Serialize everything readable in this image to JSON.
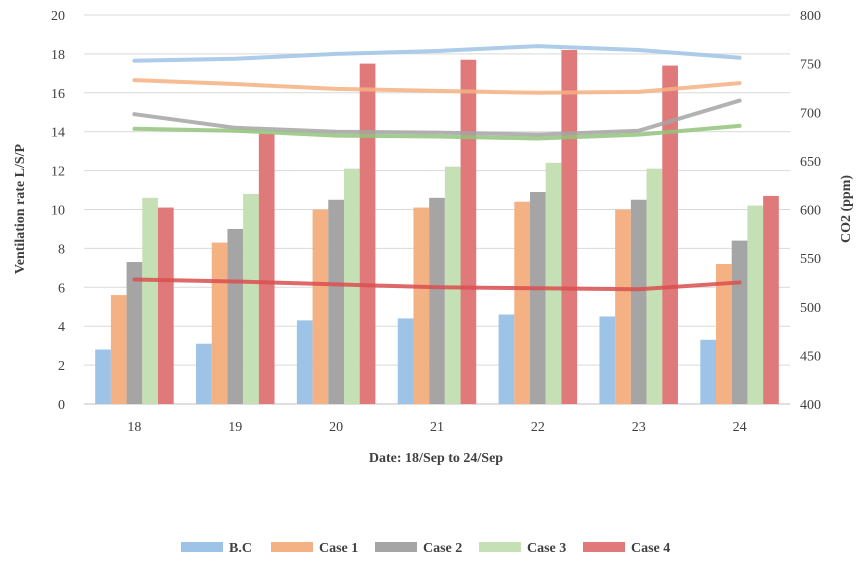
{
  "chart_data": {
    "type": "bar",
    "title": "",
    "xlabel": "Date: 18/Sep to 24/Sep",
    "ylabel": "Ventilation rate L/S/P",
    "y2label": "CO2 (ppm)",
    "categories": [
      "18",
      "19",
      "20",
      "21",
      "22",
      "23",
      "24"
    ],
    "ylim": [
      0,
      20
    ],
    "yticks": [
      "0",
      "2",
      "4",
      "6",
      "8",
      "10",
      "12",
      "14",
      "16",
      "18",
      "20"
    ],
    "y2lim": [
      400,
      800
    ],
    "y2ticks": [
      "400",
      "450",
      "500",
      "550",
      "600",
      "650",
      "700",
      "750",
      "800"
    ],
    "grid": true,
    "legend_position": "bottom",
    "series": [
      {
        "name": "B.C",
        "color": "#9dc3e6",
        "values": [
          2.8,
          3.1,
          4.3,
          4.4,
          4.6,
          4.5,
          3.3
        ]
      },
      {
        "name": "Case 1",
        "color": "#f4b183",
        "values": [
          5.6,
          8.3,
          10.0,
          10.1,
          10.4,
          10.0,
          7.2
        ]
      },
      {
        "name": "Case 2",
        "color": "#a5a5a5",
        "values": [
          7.3,
          9.0,
          10.5,
          10.6,
          10.9,
          10.5,
          8.4
        ]
      },
      {
        "name": "Case 3",
        "color": "#c5e0b4",
        "values": [
          10.6,
          10.8,
          12.1,
          12.2,
          12.4,
          12.1,
          10.2
        ]
      },
      {
        "name": "Case 4",
        "color": "#e07a7a",
        "values": [
          10.1,
          13.9,
          17.5,
          17.7,
          18.2,
          17.4,
          10.7
        ]
      }
    ],
    "co2_lines": [
      {
        "color": "#9dc3e6",
        "values": [
          753,
          755,
          760,
          763,
          768,
          764,
          756
        ]
      },
      {
        "color": "#f4b183",
        "values": [
          733,
          729,
          724,
          722,
          720,
          721,
          730
        ]
      },
      {
        "color": "#a5a5a5",
        "values": [
          698,
          684,
          680,
          679,
          677,
          681,
          712
        ]
      },
      {
        "color": "#93c47d",
        "values": [
          683,
          681,
          676,
          675,
          673,
          677,
          686
        ]
      },
      {
        "color": "#d94f4f",
        "values": [
          528,
          526,
          523,
          520,
          519,
          518,
          525
        ]
      }
    ]
  }
}
